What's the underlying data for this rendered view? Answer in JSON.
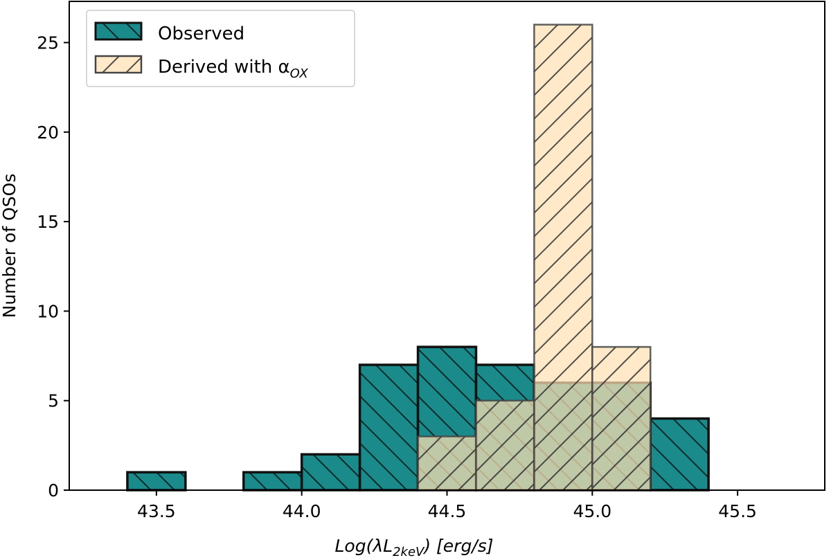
{
  "chart_data": {
    "type": "bar",
    "subtype": "histogram-overlay",
    "xlabel": "Log(λL2keV) [erg/s]",
    "xlabel_parts": {
      "prefix": "Log(λL",
      "subscript": "2keV",
      "suffix": ") [erg/s]"
    },
    "ylabel": "Number of QSOs",
    "xlim": [
      43.2,
      45.8
    ],
    "ylim": [
      0,
      27.3
    ],
    "bin_width": 0.2,
    "xticks": [
      43.5,
      44.0,
      44.5,
      45.0,
      45.5
    ],
    "xtick_labels": [
      "43.5",
      "44.0",
      "44.5",
      "45.0",
      "45.5"
    ],
    "yticks": [
      0,
      5,
      10,
      15,
      20,
      25
    ],
    "ytick_labels": [
      "0",
      "5",
      "10",
      "15",
      "20",
      "25"
    ],
    "legend_position": "top-left",
    "series": [
      {
        "name": "Observed",
        "legend_label": "Observed",
        "color": "#1b8a8a",
        "edge_color": "#111111",
        "hatch": "backslash",
        "bins": [
          {
            "x0": 43.4,
            "x1": 43.6,
            "count": 1
          },
          {
            "x0": 43.8,
            "x1": 44.0,
            "count": 1
          },
          {
            "x0": 44.0,
            "x1": 44.2,
            "count": 2
          },
          {
            "x0": 44.2,
            "x1": 44.4,
            "count": 7
          },
          {
            "x0": 44.4,
            "x1": 44.6,
            "count": 8
          },
          {
            "x0": 44.6,
            "x1": 44.8,
            "count": 7
          },
          {
            "x0": 44.8,
            "x1": 45.0,
            "count": 6
          },
          {
            "x0": 45.0,
            "x1": 45.2,
            "count": 6
          },
          {
            "x0": 45.2,
            "x1": 45.4,
            "count": 4
          }
        ]
      },
      {
        "name": "Derived with αOX",
        "legend_label": "Derived with α",
        "legend_subscript": "OX",
        "color": "#ffe0b3",
        "alpha": 0.7,
        "edge_color": "#444444",
        "hatch": "forward-slash",
        "bins": [
          {
            "x0": 44.4,
            "x1": 44.6,
            "count": 3
          },
          {
            "x0": 44.6,
            "x1": 44.8,
            "count": 5
          },
          {
            "x0": 44.8,
            "x1": 45.0,
            "count": 26
          },
          {
            "x0": 45.0,
            "x1": 45.2,
            "count": 8
          }
        ]
      }
    ]
  }
}
